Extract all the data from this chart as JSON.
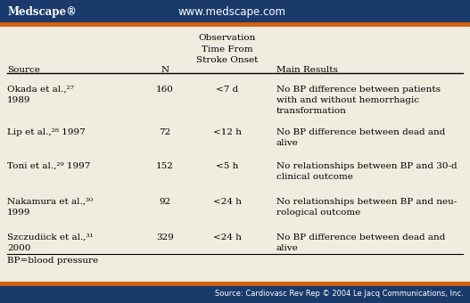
{
  "fig_width": 5.27,
  "fig_height": 3.4,
  "dpi": 100,
  "title_bar_color": "#1a3a6b",
  "title_bar_text_left": "Medscape®",
  "title_bar_text_center": "www.medscape.com",
  "bottom_bar_color": "#1a3a6b",
  "bottom_bar_text": "Source: Cardiovasc Rev Rep © 2004 Le Jacq Communications, Inc.",
  "orange_line_color": "#d4600a",
  "background_color": "#f0ece0",
  "header_col3_line1": "Observation",
  "header_col3_line2": "Time From",
  "header_col3_line3": "Stroke Onset",
  "header_col1": "Source",
  "header_col2": "N",
  "header_col4": "Main Results",
  "footnote_text": "BP=blood pressure",
  "rows": [
    {
      "source_line1": "Okada et al.,²⁷",
      "source_line2": "1989",
      "n": "160",
      "obs": "<7 d",
      "result_line1": "No BP difference between patients",
      "result_line2": "with and without hemorrhagic",
      "result_line3": "transformation"
    },
    {
      "source_line1": "Lip et al.,²⁸ 1997",
      "source_line2": "",
      "n": "72",
      "obs": "<12 h",
      "result_line1": "No BP difference between dead and",
      "result_line2": "alive",
      "result_line3": ""
    },
    {
      "source_line1": "Toni et al.,²⁹ 1997",
      "source_line2": "",
      "n": "152",
      "obs": "<5 h",
      "result_line1": "No relationships between BP and 30-d",
      "result_line2": "clinical outcome",
      "result_line3": ""
    },
    {
      "source_line1": "Nakamura et al.,³⁰",
      "source_line2": "1999",
      "n": "92",
      "obs": "<24 h",
      "result_line1": "No relationships between BP and neu-",
      "result_line2": "rological outcome",
      "result_line3": ""
    },
    {
      "source_line1": "Szczudiick et al.,³¹",
      "source_line2": "2000",
      "n": "329",
      "obs": "<24 h",
      "result_line1": "No BP difference between dead and",
      "result_line2": "alive",
      "result_line3": ""
    }
  ]
}
